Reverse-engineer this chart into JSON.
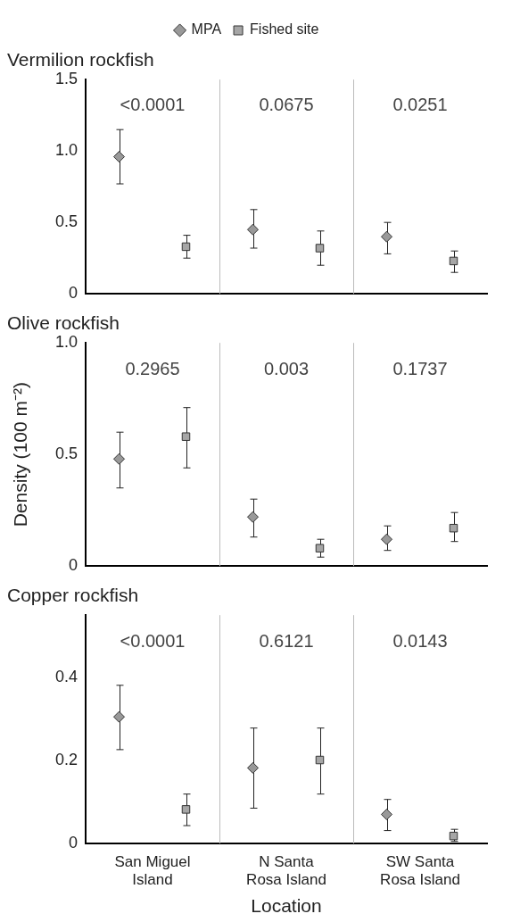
{
  "chart_data": [
    {
      "type": "scatter",
      "title": "Vermilion rockfish",
      "series": [
        {
          "name": "MPA",
          "color": "#999999",
          "marker": "diamond",
          "values": [
            0.96,
            0.45,
            0.4
          ],
          "errors": [
            [
              0.77,
              1.15
            ],
            [
              0.32,
              0.59
            ],
            [
              0.28,
              0.5
            ]
          ]
        },
        {
          "name": "Fished site",
          "color": "#a6a6a6",
          "marker": "square",
          "values": [
            0.33,
            0.32,
            0.23
          ],
          "errors": [
            [
              0.25,
              0.41
            ],
            [
              0.2,
              0.44
            ],
            [
              0.15,
              0.3
            ]
          ]
        }
      ],
      "ylim": [
        0,
        1.5
      ],
      "yticks": [
        0,
        0.5,
        {
          "value": 1,
          "label": "1.0"
        },
        1.5
      ],
      "annotations": [
        "<0.0001",
        "0.0675",
        "0.0251"
      ],
      "grid": "x",
      "legend": "top",
      "tick_labels": "y"
    },
    {
      "type": "scatter",
      "title": "Olive rockfish",
      "ylabel": "Density (100 m⁻²)",
      "series": [
        {
          "color": "#999999",
          "marker": "diamond",
          "values": [
            0.48,
            0.22,
            0.12
          ],
          "errors": [
            [
              0.35,
              0.6
            ],
            [
              0.13,
              0.3
            ],
            [
              0.07,
              0.18
            ]
          ]
        },
        {
          "color": "#a6a6a6",
          "marker": "square",
          "values": [
            0.58,
            0.08,
            0.17
          ],
          "errors": [
            [
              0.44,
              0.71
            ],
            [
              0.04,
              0.12
            ],
            [
              0.11,
              0.24
            ]
          ]
        }
      ],
      "ylim": [
        0,
        1
      ],
      "yticks": [
        0,
        0.5,
        {
          "value": 1,
          "label": "1.0"
        }
      ],
      "annotations": [
        "0.2965",
        "0.003",
        "0.1737"
      ],
      "grid": "x",
      "tick_labels": "y"
    },
    {
      "type": "scatter",
      "title": "Copper rockfish",
      "xlabel": "Location",
      "categories": [
        "San Miguel Island",
        "N Santa Rosa Island",
        "SW Santa Rosa Island"
      ],
      "series": [
        {
          "color": "#999999",
          "marker": "diamond",
          "values": [
            0.305,
            0.182,
            0.07
          ],
          "errors": [
            [
              0.226,
              0.381
            ],
            [
              0.085,
              0.278
            ],
            [
              0.031,
              0.106
            ]
          ]
        },
        {
          "color": "#a6a6a6",
          "marker": "square",
          "values": [
            0.082,
            0.201,
            0.018
          ],
          "errors": [
            [
              0.043,
              0.119
            ],
            [
              0.119,
              0.278
            ],
            [
              0.005,
              0.034
            ]
          ]
        }
      ],
      "ylim": [
        0,
        0.55
      ],
      "yticks": [
        0,
        0.2,
        0.4
      ],
      "annotations": [
        "<0.0001",
        "0.6121",
        "0.0143"
      ],
      "grid": "x"
    }
  ]
}
